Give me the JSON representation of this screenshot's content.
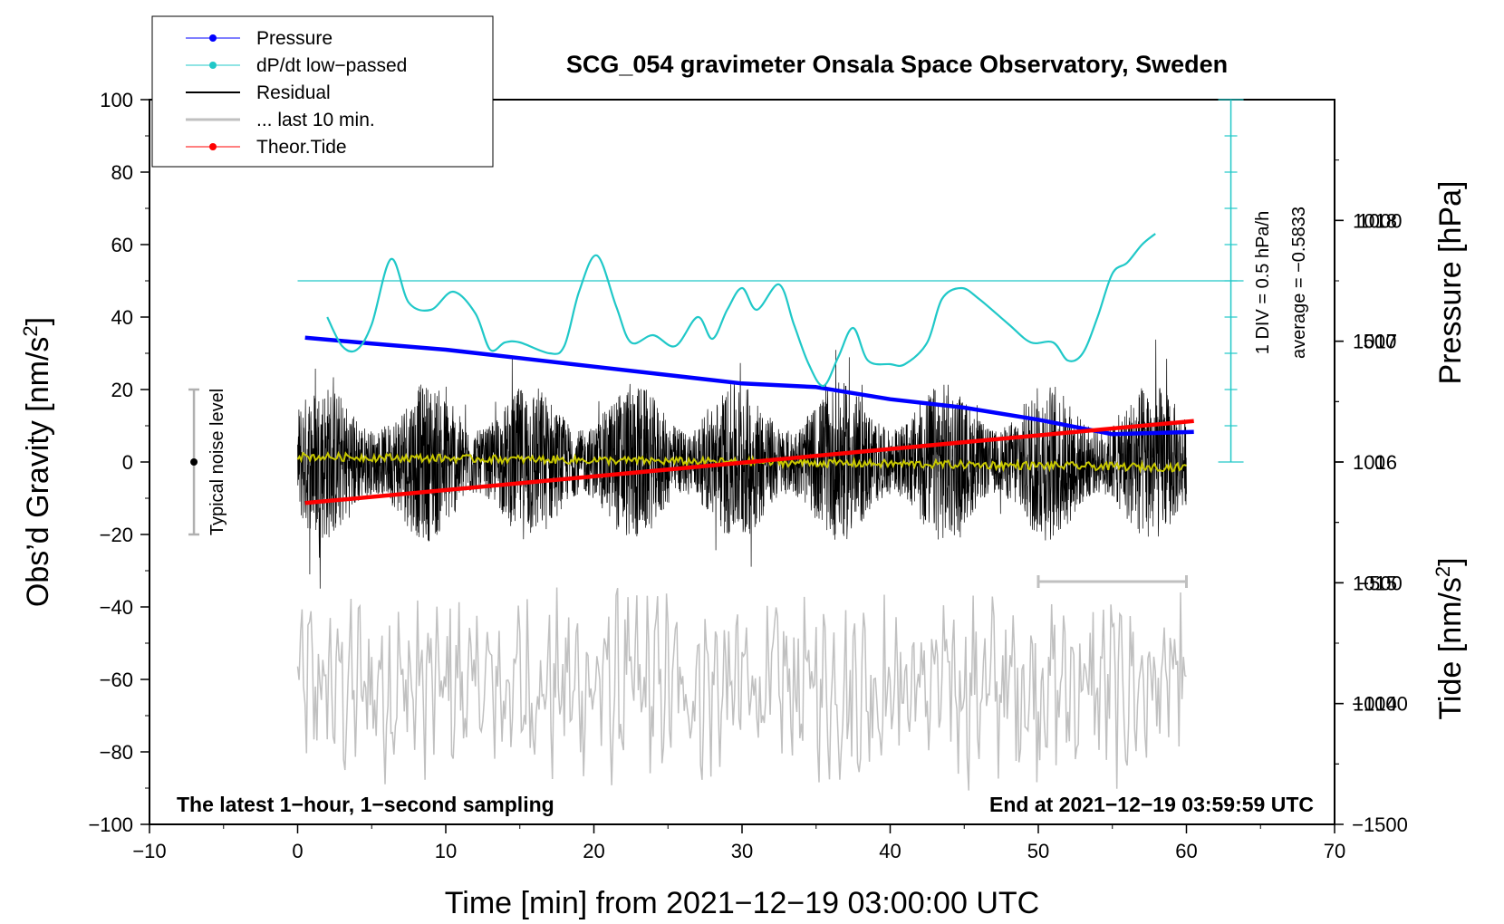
{
  "chart_data": {
    "type": "line",
    "title": "SCG_054 gravimeter Onsala Space Observatory, Sweden",
    "xlabel": "Time [min] from 2021−12−19 03:00:00 UTC",
    "ylabel": "Obs’d Gravity [nm/s",
    "ylabel_sup": "2",
    "ylabel_end": "]",
    "y2_pressure_label": "Pressure [hPa]",
    "y2_tide_label": "Tide [nm/s",
    "y2_tide_sup": "2",
    "y2_tide_end": "]",
    "xlim": [
      -10,
      70
    ],
    "ylim": [
      -100,
      100
    ],
    "pressure_lim": [
      1013,
      1019
    ],
    "tide_lim": [
      -1500,
      1500
    ],
    "xticks": [
      "−10",
      "0",
      "10",
      "20",
      "30",
      "40",
      "50",
      "60",
      "70"
    ],
    "yticks": [
      "−100",
      "−80",
      "−60",
      "−40",
      "−20",
      "0",
      "20",
      "40",
      "60",
      "80",
      "100"
    ],
    "pressure_ticks": [
      "1014",
      "1015",
      "1016",
      "1017",
      "1018"
    ],
    "tide_ticks": [
      "−1500",
      "−1000",
      "−500",
      "0",
      "500",
      "1000"
    ],
    "legend": [
      {
        "label": "Pressure",
        "color": "#0000ff",
        "marker": true
      },
      {
        "label": "dP/dt low−passed",
        "color": "#20c8c8",
        "marker": true
      },
      {
        "label": "Residual",
        "color": "#000000",
        "marker": false
      },
      {
        "label": "... last 10 min.",
        "color": "#c0c0c0",
        "marker": false
      },
      {
        "label": "Theor.Tide",
        "color": "#ff0000",
        "marker": true
      }
    ],
    "series": [
      {
        "name": "Pressure",
        "axis": "pressure",
        "color": "#0000ff",
        "x": [
          0.5,
          5,
          10,
          15,
          20,
          25,
          30,
          35,
          40,
          45,
          50,
          55,
          60.5
        ],
        "y": [
          1017.03,
          1016.98,
          1016.93,
          1016.86,
          1016.79,
          1016.72,
          1016.65,
          1016.62,
          1016.52,
          1016.45,
          1016.35,
          1016.23,
          1016.25
        ]
      },
      {
        "name": "dP/dt low-passed",
        "axis": "dpdt",
        "color": "#20c8c8",
        "x": [
          2,
          3,
          4,
          5,
          6.3,
          7.5,
          9,
          10.5,
          12,
          13,
          14,
          15,
          17,
          18,
          19,
          20.2,
          21.5,
          22.5,
          24,
          25.5,
          27,
          28,
          29,
          30,
          31,
          32.5,
          33.5,
          34.5,
          35.5,
          36.5,
          37.5,
          38.5,
          40,
          41,
          42.5,
          43.5,
          44.8,
          46,
          48,
          49.5,
          51,
          52,
          53,
          54,
          55,
          56,
          57,
          57.9
        ],
        "y": [
          40,
          32,
          31,
          38,
          56,
          44,
          42,
          47,
          41,
          31,
          33,
          33,
          30,
          32,
          47,
          57,
          43,
          33,
          35,
          32,
          40,
          34,
          42,
          48,
          42,
          49,
          38,
          27,
          21,
          29,
          37,
          28,
          27,
          27,
          33,
          45,
          48,
          45,
          38,
          33,
          33,
          28,
          30,
          40,
          52,
          55,
          60,
          63
        ]
      },
      {
        "name": "Residual",
        "axis": "gravity",
        "color": "#000000",
        "x_range": [
          0,
          60
        ],
        "amplitude": 22
      },
      {
        "name": "Residual last 10 min.",
        "axis": "gravity",
        "color": "#c0c0c0",
        "x_range": [
          0,
          60
        ],
        "center": -62,
        "amplitude": 20
      },
      {
        "name": "Theor.Tide",
        "axis": "tide",
        "color": "#ff0000",
        "x": [
          0.5,
          60.5
        ],
        "y": [
          -170,
          170
        ]
      },
      {
        "name": "Residual mean",
        "axis": "gravity",
        "color": "#c8c800",
        "x_range": [
          0,
          60
        ],
        "center": 1.5,
        "end": -1.5
      }
    ],
    "dpdt_axis": {
      "label": "1 DIV = 0.5 hPa/h",
      "average": "average = −0.5833",
      "x": 63,
      "reference": 50,
      "divisions": 10
    },
    "noise_level": {
      "label": "Typical noise level",
      "x": -7,
      "range": [
        -20,
        20
      ]
    },
    "last_10_min_bar": {
      "x_range": [
        50,
        60
      ],
      "y": -33
    },
    "annotations": {
      "left": "The latest 1−hour, 1−second sampling",
      "right": "End at 2021−12−19 03:59:59 UTC"
    }
  }
}
